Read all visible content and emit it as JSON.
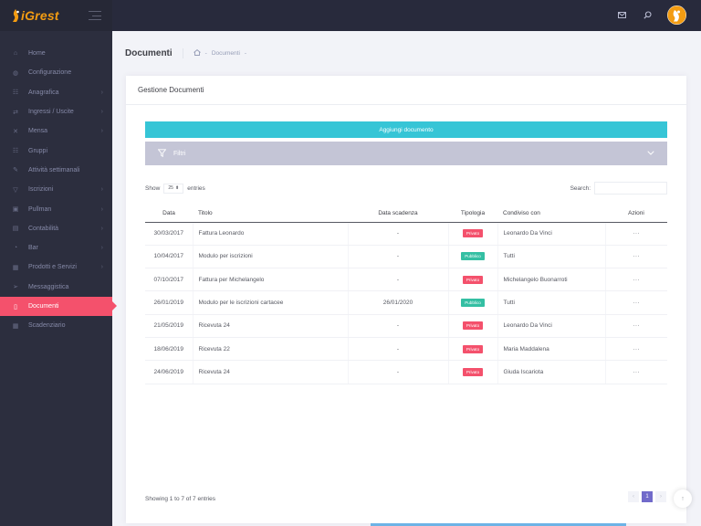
{
  "brand": {
    "logo_text": "iGrest"
  },
  "sidebar": {
    "items": [
      {
        "label": "Home",
        "icon": "home-icon",
        "glyph": "⌂",
        "chevron": false,
        "active": false
      },
      {
        "label": "Configurazione",
        "icon": "globe-icon",
        "glyph": "◍",
        "chevron": false,
        "active": false
      },
      {
        "label": "Anagrafica",
        "icon": "users-icon",
        "glyph": "☷",
        "chevron": true,
        "active": false
      },
      {
        "label": "Ingressi / Uscite",
        "icon": "exchange-icon",
        "glyph": "⇄",
        "chevron": true,
        "active": false
      },
      {
        "label": "Mensa",
        "icon": "utensils-icon",
        "glyph": "✕",
        "chevron": true,
        "active": false
      },
      {
        "label": "Gruppi",
        "icon": "group-icon",
        "glyph": "☷",
        "chevron": false,
        "active": false
      },
      {
        "label": "Attività settimanali",
        "icon": "edit-icon",
        "glyph": "✎",
        "chevron": false,
        "active": false
      },
      {
        "label": "Iscrizioni",
        "icon": "filter-icon",
        "glyph": "▽",
        "chevron": true,
        "active": false
      },
      {
        "label": "Pullman",
        "icon": "bus-icon",
        "glyph": "▣",
        "chevron": true,
        "active": false
      },
      {
        "label": "Contabilità",
        "icon": "calculator-icon",
        "glyph": "▤",
        "chevron": true,
        "active": false
      },
      {
        "label": "Bar",
        "icon": "coffee-icon",
        "glyph": "◔",
        "chevron": true,
        "active": false
      },
      {
        "label": "Prodotti e Servizi",
        "icon": "boxes-icon",
        "glyph": "▦",
        "chevron": true,
        "active": false
      },
      {
        "label": "Messaggistica",
        "icon": "send-icon",
        "glyph": "➢",
        "chevron": false,
        "active": false
      },
      {
        "label": "Documenti",
        "icon": "document-icon",
        "glyph": "▯",
        "chevron": false,
        "active": true
      },
      {
        "label": "Scadenziario",
        "icon": "calendar-icon",
        "glyph": "▦",
        "chevron": false,
        "active": false
      }
    ]
  },
  "subheader": {
    "title": "Documenti",
    "breadcrumb": "Documenti"
  },
  "portlet": {
    "title": "Gestione Documenti"
  },
  "actions": {
    "add_label": "Aggiungi documento",
    "filters_label": "Filtri"
  },
  "controls": {
    "show_label": "Show",
    "page_size": "25",
    "entries_label": "entries",
    "search_label": "Search:"
  },
  "table": {
    "columns": [
      "Data",
      "Titolo",
      "Data scadenza",
      "Tipologia",
      "Condiviso con",
      "Azioni"
    ],
    "rows": [
      {
        "data": "30/03/2017",
        "titolo": "Fattura Leonardo",
        "scadenza": "-",
        "tipologia": "Privato",
        "tipo": "priv",
        "condiviso": "Leonardo Da Vinci",
        "azioni": "···"
      },
      {
        "data": "10/04/2017",
        "titolo": "Modulo per iscrizioni",
        "scadenza": "-",
        "tipologia": "Pubblico",
        "tipo": "pub",
        "condiviso": "Tutti",
        "azioni": "···"
      },
      {
        "data": "07/10/2017",
        "titolo": "Fattura per Michelangelo",
        "scadenza": "-",
        "tipologia": "Privato",
        "tipo": "priv",
        "condiviso": "Michelangelo Buonarroti",
        "azioni": "···"
      },
      {
        "data": "26/01/2019",
        "titolo": "Modulo per le iscrizioni cartacee",
        "scadenza": "26/01/2020",
        "tipologia": "Pubblico",
        "tipo": "pub",
        "condiviso": "Tutti",
        "azioni": "···"
      },
      {
        "data": "21/05/2019",
        "titolo": "Ricevuta 24",
        "scadenza": "-",
        "tipologia": "Privato",
        "tipo": "priv",
        "condiviso": "Leonardo Da Vinci",
        "azioni": "···"
      },
      {
        "data": "18/06/2019",
        "titolo": "Ricevuta 22",
        "scadenza": "-",
        "tipologia": "Privato",
        "tipo": "priv",
        "condiviso": "Maria Maddalena",
        "azioni": "···"
      },
      {
        "data": "24/06/2019",
        "titolo": "Ricevuta 24",
        "scadenza": "-",
        "tipologia": "Privato",
        "tipo": "priv",
        "condiviso": "Giuda Iscariota",
        "azioni": "···"
      }
    ]
  },
  "footer": {
    "info": "Showing 1 to 7 of 7 entries",
    "pages": [
      "‹",
      "1",
      "›"
    ],
    "current_page": "1"
  },
  "colors": {
    "accent_active": "#f4516c",
    "add_button": "#36c5d6",
    "filters_bar": "#c4c5d6",
    "public_badge": "#34bfa3",
    "private_badge": "#f4516c",
    "pager_active": "#716aca"
  }
}
